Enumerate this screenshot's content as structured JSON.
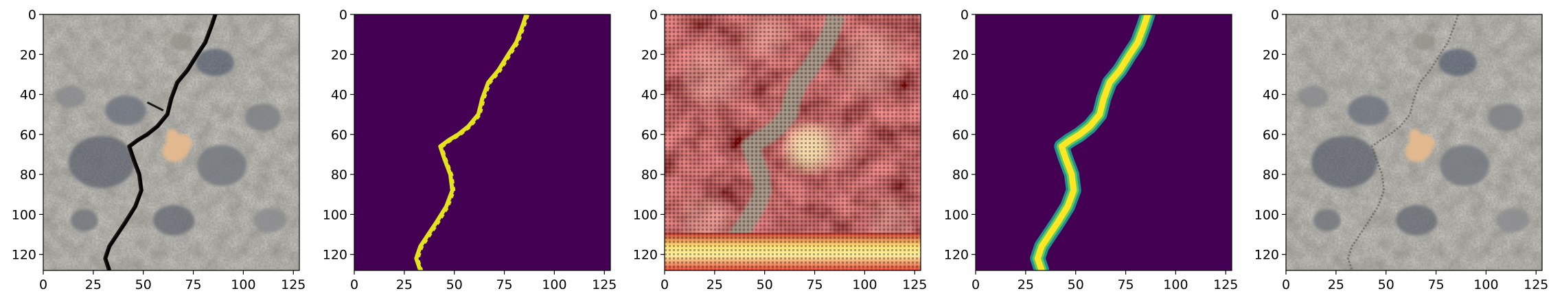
{
  "figure": {
    "panels": [
      {
        "id": "photo",
        "kind": "crack-photograph"
      },
      {
        "id": "mask",
        "kind": "binary-crack-mask",
        "colors": {
          "background": "#440154",
          "crack": "#e3e419"
        }
      },
      {
        "id": "reconstruction",
        "kind": "noisy-generated-texture"
      },
      {
        "id": "soft-mask",
        "kind": "smooth-crack-mask",
        "colors": {
          "background": "#440154",
          "edge": "#21918c",
          "core": "#fde725"
        }
      },
      {
        "id": "inpainted-photo",
        "kind": "crack-removed-photograph"
      }
    ],
    "x_ticks": [
      "0",
      "25",
      "50",
      "75",
      "100",
      "125"
    ],
    "y_ticks": [
      "0",
      "20",
      "40",
      "60",
      "80",
      "100",
      "120"
    ],
    "axis_range": {
      "x": [
        0,
        128
      ],
      "y": [
        128,
        0
      ]
    },
    "crack_path": [
      [
        86,
        0
      ],
      [
        84,
        6
      ],
      [
        81,
        14
      ],
      [
        77,
        20
      ],
      [
        72,
        28
      ],
      [
        67,
        34
      ],
      [
        64,
        42
      ],
      [
        62,
        50
      ],
      [
        57,
        56
      ],
      [
        52,
        60
      ],
      [
        47,
        63
      ],
      [
        43,
        66
      ],
      [
        45,
        72
      ],
      [
        48,
        80
      ],
      [
        49,
        88
      ],
      [
        46,
        96
      ],
      [
        41,
        104
      ],
      [
        37,
        110
      ],
      [
        33,
        116
      ],
      [
        31,
        122
      ],
      [
        33,
        128
      ]
    ]
  }
}
